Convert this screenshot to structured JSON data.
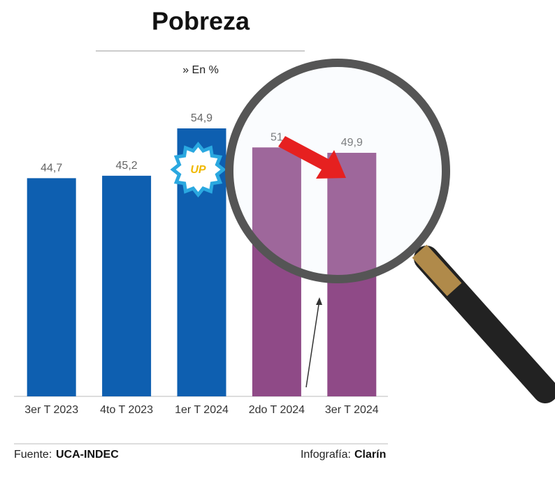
{
  "chart_data": {
    "type": "bar",
    "title": "Pobreza",
    "subtitle": "» En %",
    "categories": [
      "3er T 2023",
      "4to T 2023",
      "1er T 2024",
      "2do T 2024",
      "3er T 2024"
    ],
    "values": [
      44.7,
      45.2,
      54.9,
      51,
      49.9
    ],
    "value_labels": [
      "44,7",
      "45,2",
      "54,9",
      "51",
      "49,9"
    ],
    "colors": [
      "#0e5fb0",
      "#0e5fb0",
      "#0e5fb0",
      "#8f4a87",
      "#8f4a87"
    ],
    "badge": "UP",
    "source": {
      "label": "Fuente:",
      "value": "UCA-INDEC"
    },
    "credit": {
      "label": "Infografía:",
      "value": "Clarín"
    }
  }
}
